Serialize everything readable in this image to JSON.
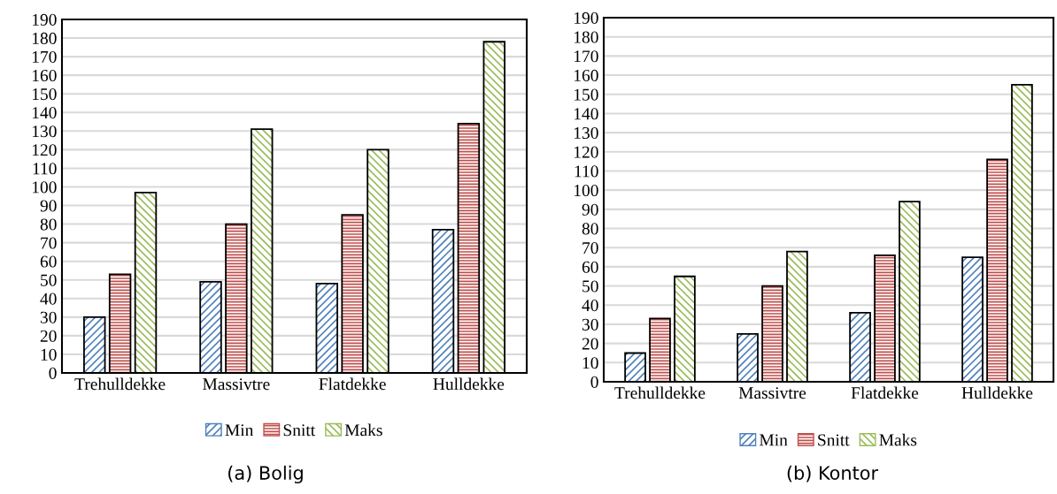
{
  "chart_data": [
    {
      "type": "bar",
      "categories": [
        "Trehulldekke",
        "Massivtre",
        "Flatdekke",
        "Hulldekke"
      ],
      "series": [
        {
          "name": "Min",
          "color": "#4f81bd",
          "values": [
            30,
            49,
            48,
            77
          ]
        },
        {
          "name": "Snitt",
          "color": "#c0504d",
          "values": [
            53,
            80,
            85,
            134
          ]
        },
        {
          "name": "Maks",
          "color": "#9bbb59",
          "values": [
            97,
            131,
            120,
            178
          ]
        }
      ],
      "ylim": [
        0,
        190
      ],
      "yticks": [
        0,
        10,
        20,
        30,
        40,
        50,
        60,
        70,
        80,
        90,
        100,
        110,
        120,
        130,
        140,
        150,
        160,
        170,
        180,
        190
      ],
      "grid": "y",
      "legend": "bottom",
      "annotations": [
        "(a) Bolig"
      ]
    },
    {
      "type": "bar",
      "categories": [
        "Trehulldekke",
        "Massivtre",
        "Flatdekke",
        "Hulldekke"
      ],
      "series": [
        {
          "name": "Min",
          "color": "#4f81bd",
          "values": [
            15,
            25,
            36,
            65
          ]
        },
        {
          "name": "Snitt",
          "color": "#c0504d",
          "values": [
            33,
            50,
            66,
            116
          ]
        },
        {
          "name": "Maks",
          "color": "#9bbb59",
          "values": [
            55,
            68,
            94,
            155
          ]
        }
      ],
      "ylim": [
        0,
        190
      ],
      "yticks": [
        0,
        10,
        20,
        30,
        40,
        50,
        60,
        70,
        80,
        90,
        100,
        110,
        120,
        130,
        140,
        150,
        160,
        170,
        180,
        190
      ],
      "grid": "y",
      "legend": "bottom",
      "annotations": [
        "(b) Kontor"
      ]
    }
  ]
}
